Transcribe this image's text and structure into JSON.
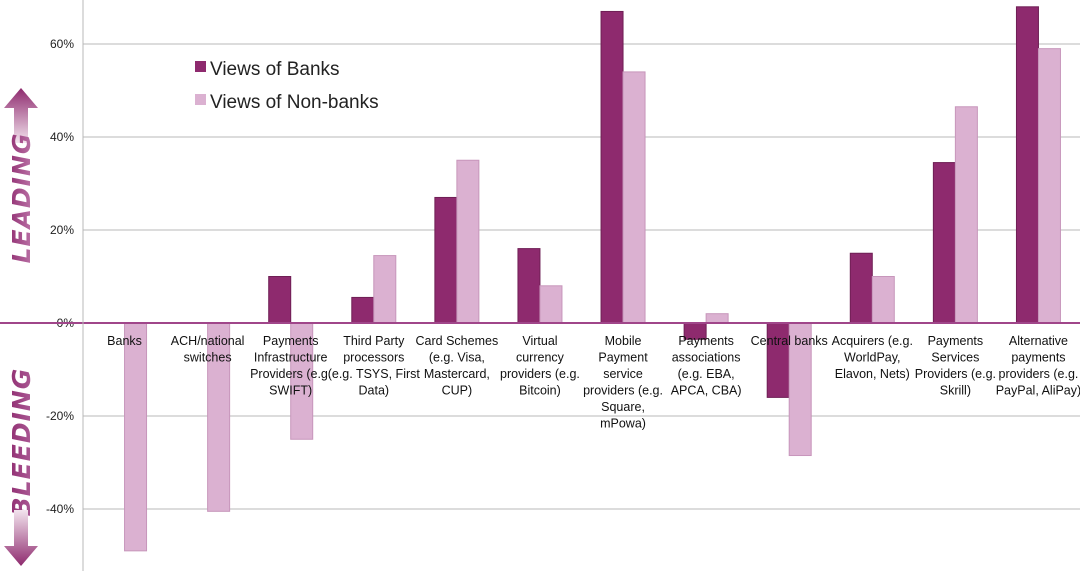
{
  "chart_data": {
    "type": "bar",
    "categories": [
      "Banks",
      "ACH/national switches",
      "Payments Infrastructure Providers (e.g. SWIFT)",
      "Third Party processors (e.g. TSYS, First Data)",
      "Card Schemes (e.g. Visa, Mastercard, CUP)",
      "Virtual currency providers (e.g. Bitcoin)",
      "Mobile Payment service providers (e.g. Square, mPowa)",
      "Payments associations (e.g. EBA, APCA, CBA)",
      "Central banks",
      "Acquirers (e.g. WorldPay, Elavon, Nets)",
      "Payments Services Providers (e.g. Skrill)",
      "Alternative payments providers (e.g. PayPal, AliPay)"
    ],
    "category_lines": [
      [
        "Banks"
      ],
      [
        "ACH/national",
        "switches"
      ],
      [
        "Payments",
        "Infrastructure",
        "Providers (e.g.",
        "SWIFT)"
      ],
      [
        "Third Party",
        "processors",
        "(e.g. TSYS, First",
        "Data)"
      ],
      [
        "Card Schemes",
        "(e.g. Visa,",
        "Mastercard,",
        "CUP)"
      ],
      [
        "Virtual",
        "currency",
        "providers (e.g.",
        "Bitcoin)"
      ],
      [
        "Mobile",
        "Payment",
        "service",
        "providers (e.g.",
        "Square,",
        "mPowa)"
      ],
      [
        "Payments",
        "associations",
        "(e.g. EBA,",
        "APCA, CBA)"
      ],
      [
        "Central banks"
      ],
      [
        "Acquirers (e.g.",
        "WorldPay,",
        "Elavon, Nets)"
      ],
      [
        "Payments",
        "Services",
        "Providers (e.g.",
        "Skrill)"
      ],
      [
        "Alternative",
        "payments",
        "providers (e.g.",
        "PayPal, AliPay)"
      ]
    ],
    "series": [
      {
        "name": "Views of Banks",
        "color": "#8e2a6e",
        "values": [
          0,
          0,
          10,
          5.5,
          27,
          16,
          67,
          -3.5,
          -16,
          15,
          34.5,
          68
        ]
      },
      {
        "name": "Views of Non-banks",
        "color": "#dbb1d1",
        "values": [
          -49,
          -40.5,
          -25,
          14.5,
          35,
          8,
          54,
          2,
          -28.5,
          10,
          46.5,
          59
        ]
      }
    ],
    "yticks": [
      -40,
      -20,
      0,
      20,
      40,
      60
    ],
    "ytick_labels": [
      "-40%",
      "-20%",
      "0%",
      "20%",
      "40%",
      "60%"
    ],
    "ylim": [
      -53,
      68.5
    ],
    "grid": true,
    "legend_position": "top-left",
    "side_labels": {
      "top": "LEADING",
      "bottom": "BLEEDING"
    },
    "colors": {
      "axis_accent": "#a0468a",
      "arrow_dark": "#8e2a6e",
      "arrow_light": "#eedbe8",
      "gridline": "#b8b8b8"
    }
  }
}
